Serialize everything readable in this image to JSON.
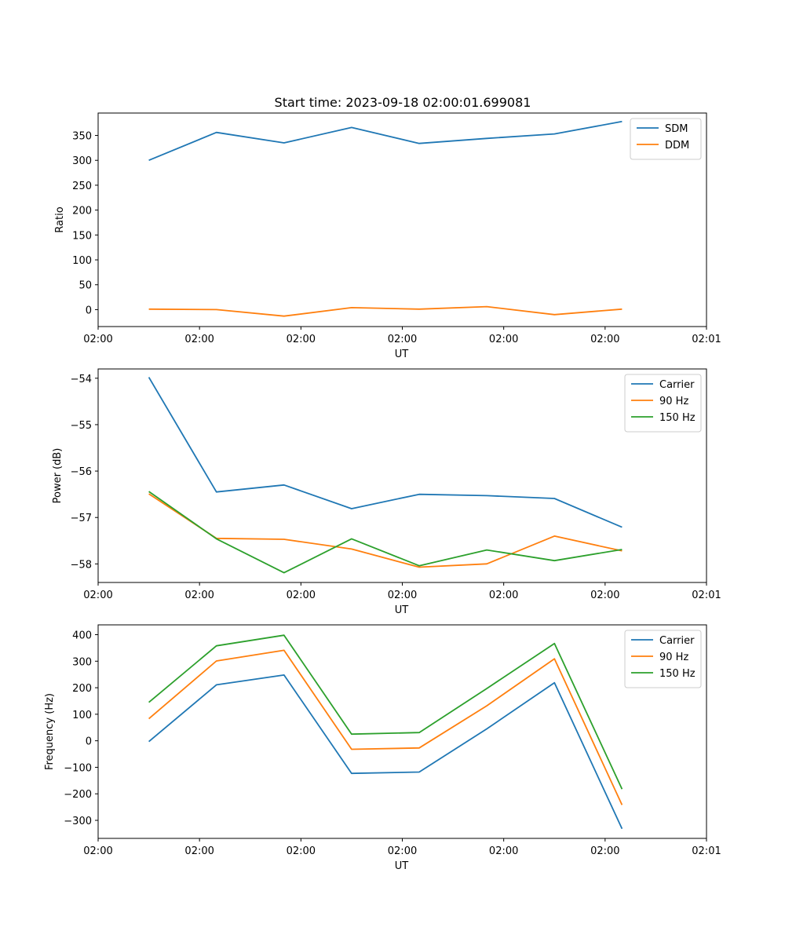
{
  "figure": {
    "title": "Start time: 2023-09-18 02:00:01.699081"
  },
  "chart_data": [
    {
      "type": "line",
      "xlabel": "UT",
      "ylabel": "Ratio",
      "x": [
        1,
        2,
        3,
        4,
        5,
        6,
        7,
        8
      ],
      "xlim": [
        0.25,
        9.25
      ],
      "xticks": [
        0.25,
        1.75,
        3.25,
        4.75,
        6.25,
        7.75,
        9.25
      ],
      "xtick_labels": [
        "02:00",
        "02:00",
        "02:00",
        "02:00",
        "02:00",
        "02:00",
        "02:01"
      ],
      "ylim": [
        -34,
        395
      ],
      "yticks": [
        0,
        50,
        100,
        150,
        200,
        250,
        300,
        350
      ],
      "legend": "top-right",
      "series": [
        {
          "name": "SDM",
          "color": "#1f77b4",
          "values": [
            300,
            356,
            335,
            366,
            334,
            344,
            353,
            378
          ]
        },
        {
          "name": "DDM",
          "color": "#ff7f0e",
          "values": [
            1,
            0,
            -13,
            4,
            1,
            6,
            -10,
            1
          ]
        }
      ]
    },
    {
      "type": "line",
      "xlabel": "UT",
      "ylabel": "Power (dB)",
      "x": [
        1,
        2,
        3,
        4,
        5,
        6,
        7,
        8
      ],
      "xlim": [
        0.25,
        9.25
      ],
      "xticks": [
        0.25,
        1.75,
        3.25,
        4.75,
        6.25,
        7.75,
        9.25
      ],
      "xtick_labels": [
        "02:00",
        "02:00",
        "02:00",
        "02:00",
        "02:00",
        "02:00",
        "02:01"
      ],
      "ylim": [
        -58.4,
        -53.8
      ],
      "yticks": [
        -58,
        -57,
        -56,
        -55,
        -54
      ],
      "ytick_labels": [
        "−58",
        "−57",
        "−56",
        "−55",
        "−54"
      ],
      "legend": "top-right",
      "series": [
        {
          "name": "Carrier",
          "color": "#1f77b4",
          "values": [
            -53.98,
            -56.45,
            -56.3,
            -56.81,
            -56.5,
            -56.53,
            -56.59,
            -57.21
          ]
        },
        {
          "name": "90 Hz",
          "color": "#ff7f0e",
          "values": [
            -56.49,
            -57.45,
            -57.47,
            -57.68,
            -58.07,
            -58.0,
            -57.4,
            -57.72
          ]
        },
        {
          "name": "150 Hz",
          "color": "#2ca02c",
          "values": [
            -56.44,
            -57.46,
            -58.19,
            -57.46,
            -58.04,
            -57.7,
            -57.93,
            -57.69
          ]
        }
      ]
    },
    {
      "type": "line",
      "xlabel": "UT",
      "ylabel": "Frequency (Hz)",
      "x": [
        1,
        2,
        3,
        4,
        5,
        6,
        7,
        8
      ],
      "xlim": [
        0.25,
        9.25
      ],
      "xticks": [
        0.25,
        1.75,
        3.25,
        4.75,
        6.25,
        7.75,
        9.25
      ],
      "xtick_labels": [
        "02:00",
        "02:00",
        "02:00",
        "02:00",
        "02:00",
        "02:00",
        "02:01"
      ],
      "ylim": [
        -368,
        437
      ],
      "yticks": [
        -300,
        -200,
        -100,
        0,
        100,
        200,
        300,
        400
      ],
      "ytick_labels": [
        "−300",
        "−200",
        "−100",
        "0",
        "100",
        "200",
        "300",
        "400"
      ],
      "legend": "top-right",
      "series": [
        {
          "name": "Carrier",
          "color": "#1f77b4",
          "values": [
            -3,
            211,
            248,
            -123,
            -118,
            45,
            219,
            -332
          ]
        },
        {
          "name": "90 Hz",
          "color": "#ff7f0e",
          "values": [
            83,
            301,
            341,
            -32,
            -27,
            132,
            309,
            -242
          ]
        },
        {
          "name": "150 Hz",
          "color": "#2ca02c",
          "values": [
            145,
            358,
            398,
            25,
            31,
            197,
            367,
            -182
          ]
        }
      ]
    }
  ]
}
